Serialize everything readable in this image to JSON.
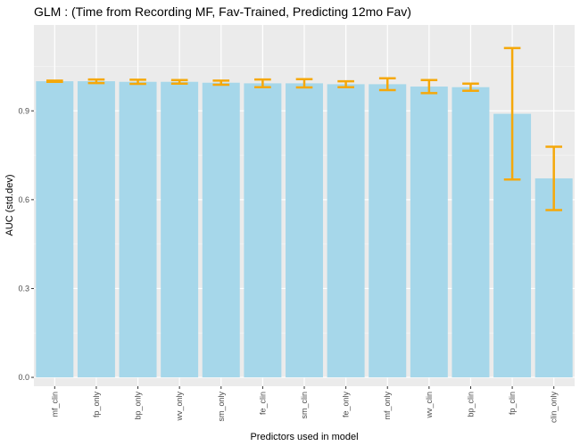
{
  "chart_data": {
    "type": "bar",
    "title": "GLM : (Time from Recording MF, Fav-Trained, Predicting 12mo Fav)",
    "xlabel": "Predictors used in model",
    "ylabel": "AUC (std.dev)",
    "categories": [
      "mf_clin",
      "fp_only",
      "bp_only",
      "wv_only",
      "sm_only",
      "fe_clin",
      "sm_clin",
      "fe_only",
      "mf_only",
      "wv_clin",
      "bp_clin",
      "fp_clin",
      "clin_only"
    ],
    "values": [
      1.0,
      1.0,
      0.998,
      0.998,
      0.995,
      0.993,
      0.993,
      0.99,
      0.99,
      0.982,
      0.98,
      0.89,
      0.672
    ],
    "error_low": [
      0.998,
      0.994,
      0.991,
      0.992,
      0.988,
      0.98,
      0.979,
      0.98,
      0.97,
      0.96,
      0.968,
      0.668,
      0.565
    ],
    "error_high": [
      1.002,
      1.006,
      1.005,
      1.004,
      1.002,
      1.006,
      1.007,
      1.0,
      1.01,
      1.004,
      0.992,
      1.112,
      0.779
    ],
    "ylim": [
      -0.03,
      1.19
    ],
    "yticks": [
      0.0,
      0.3,
      0.6,
      0.9
    ],
    "ytick_labels": [
      "0.0",
      "0.3",
      "0.6",
      "0.9"
    ],
    "grid": true,
    "legend": "none",
    "colors": {
      "bar": "#a6d7ea",
      "error": "#f5a80a",
      "panel": "#ebebeb",
      "grid_major": "#ffffff",
      "grid_minor": "#f5f5f5",
      "axis_text": "#4d4d4d"
    }
  }
}
